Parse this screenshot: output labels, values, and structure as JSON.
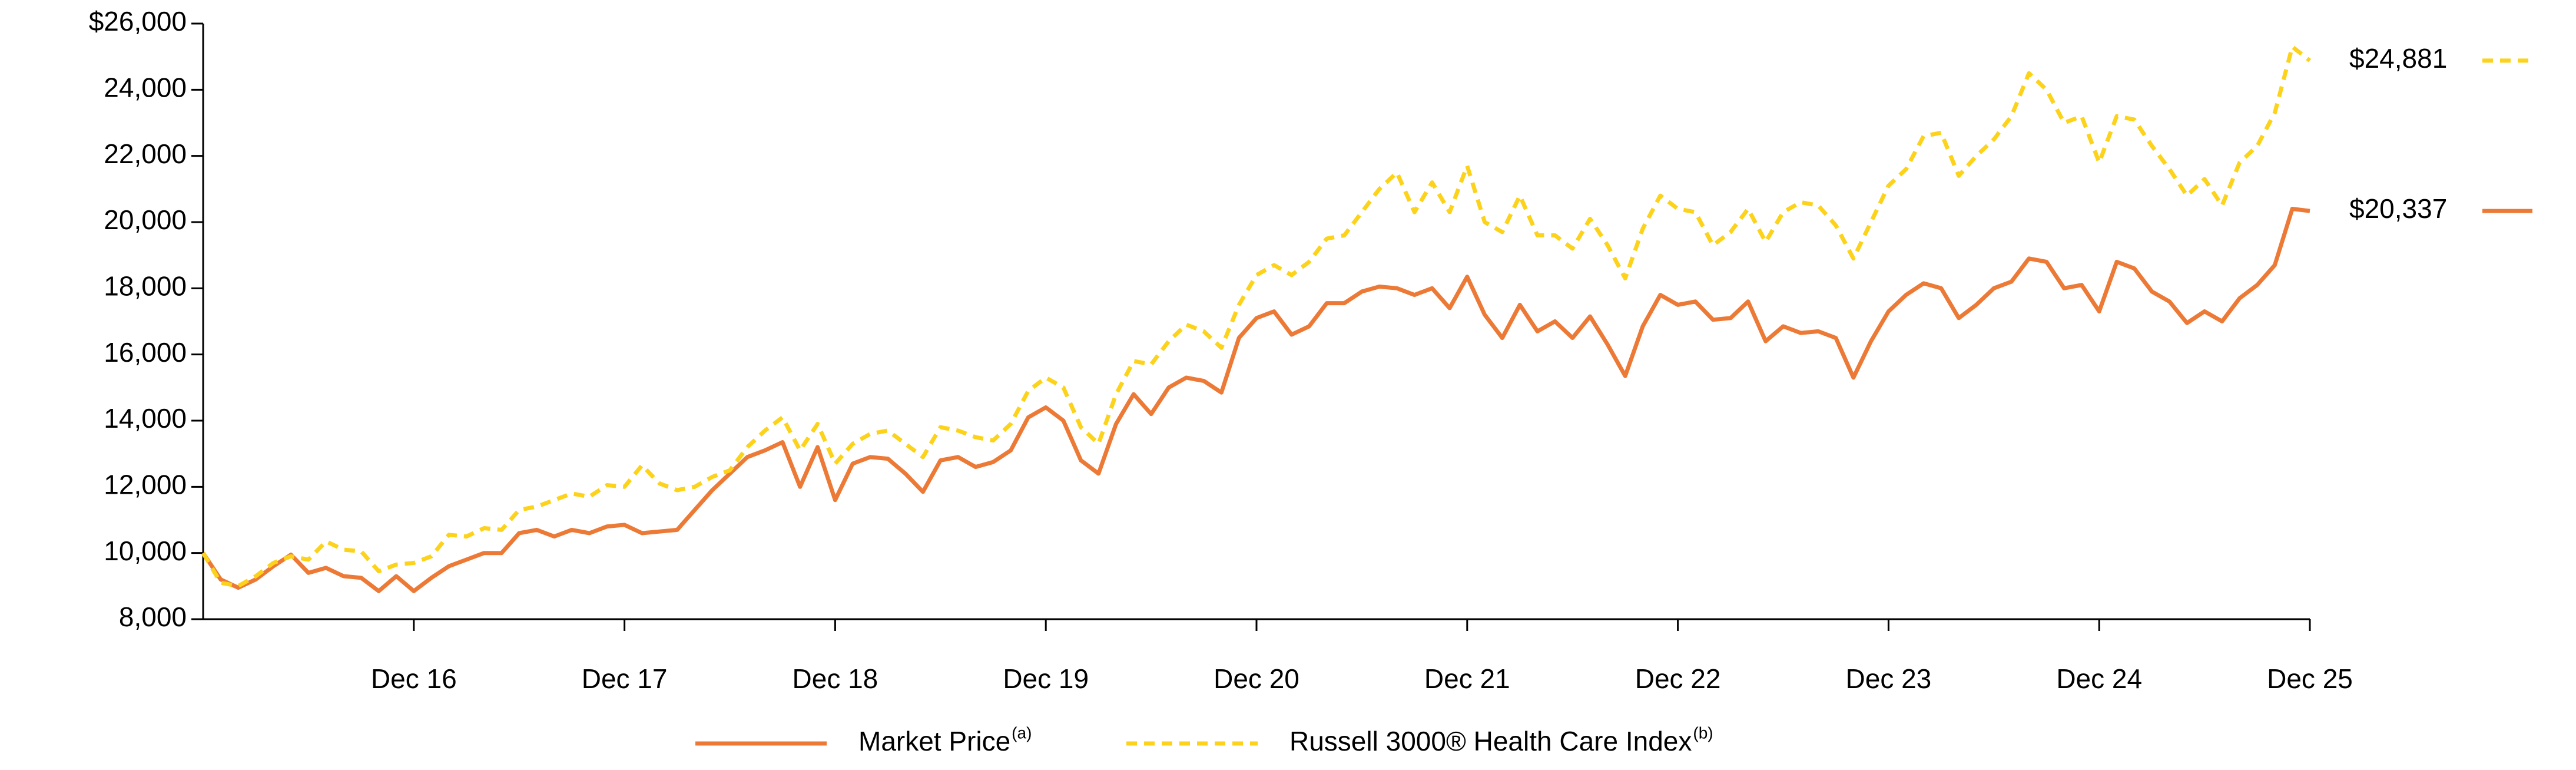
{
  "chart_data": {
    "type": "line",
    "categories": [
      null,
      null,
      null,
      null,
      null,
      null,
      null,
      null,
      null,
      null,
      null,
      null,
      "Dec 16",
      null,
      null,
      null,
      null,
      null,
      null,
      null,
      null,
      null,
      null,
      null,
      "Dec 17",
      null,
      null,
      null,
      null,
      null,
      null,
      null,
      null,
      null,
      null,
      null,
      "Dec 18",
      null,
      null,
      null,
      null,
      null,
      null,
      null,
      null,
      null,
      null,
      null,
      "Dec 19",
      null,
      null,
      null,
      null,
      null,
      null,
      null,
      null,
      null,
      null,
      null,
      "Dec 20",
      null,
      null,
      null,
      null,
      null,
      null,
      null,
      null,
      null,
      null,
      null,
      "Dec 21",
      null,
      null,
      null,
      null,
      null,
      null,
      null,
      null,
      null,
      null,
      null,
      "Dec 22",
      null,
      null,
      null,
      null,
      null,
      null,
      null,
      null,
      null,
      null,
      null,
      "Dec 23",
      null,
      null,
      null,
      null,
      null,
      null,
      null,
      null,
      null,
      null,
      null,
      "Dec 24",
      null,
      null,
      null,
      null,
      null,
      null,
      null,
      null,
      null,
      null,
      null,
      "Dec 25"
    ],
    "series": [
      {
        "name": "Market Price",
        "name_superscript": "(a)",
        "color": "#ec7a36",
        "dash": false,
        "values": [
          10000,
          9200,
          8950,
          9200,
          9600,
          9950,
          9400,
          9550,
          9300,
          9250,
          8850,
          9300,
          8850,
          9250,
          9600,
          9800,
          10000,
          10000,
          10600,
          10700,
          10500,
          10700,
          10600,
          10800,
          10850,
          10600,
          10650,
          10700,
          11300,
          11900,
          12400,
          12900,
          13100,
          13350,
          12000,
          13200,
          11600,
          12700,
          12900,
          12850,
          12400,
          11850,
          12800,
          12900,
          12600,
          12750,
          13100,
          14100,
          14400,
          14000,
          12800,
          12400,
          13900,
          14800,
          14200,
          15000,
          15300,
          15200,
          14850,
          16500,
          17100,
          17300,
          16600,
          16850,
          17550,
          17550,
          17900,
          18050,
          18000,
          17800,
          18000,
          17400,
          18350,
          17200,
          16500,
          17500,
          16700,
          17000,
          16500,
          17150,
          16300,
          15350,
          16850,
          17800,
          17500,
          17600,
          17050,
          17100,
          17600,
          16400,
          16850,
          16650,
          16700,
          16500,
          15300,
          16400,
          17300,
          17800,
          18150,
          18000,
          17100,
          17500,
          18000,
          18200,
          18900,
          18800,
          18000,
          18100,
          17300,
          18800,
          18600,
          17900,
          17600,
          16950,
          17300,
          17000,
          17700,
          18100,
          18700,
          20400,
          20337
        ],
        "value_labels": [
          null,
          null,
          null,
          null,
          null,
          null,
          null,
          null,
          null,
          null,
          null,
          null,
          null,
          null,
          null,
          null,
          null,
          null,
          null,
          null,
          null,
          null,
          null,
          null,
          null,
          null,
          null,
          null,
          null,
          null,
          null,
          null,
          null,
          null,
          null,
          null,
          null,
          null,
          null,
          null,
          null,
          null,
          null,
          null,
          null,
          null,
          null,
          null,
          null,
          null,
          null,
          null,
          null,
          null,
          null,
          null,
          null,
          null,
          null,
          null,
          null,
          null,
          null,
          null,
          null,
          null,
          null,
          null,
          null,
          null,
          null,
          null,
          null,
          null,
          null,
          null,
          null,
          null,
          null,
          null,
          null,
          null,
          null,
          null,
          null,
          null,
          null,
          null,
          null,
          null,
          null,
          null,
          null,
          null,
          null,
          null,
          null,
          null,
          null,
          null,
          null,
          null,
          null,
          null,
          null,
          null,
          null,
          null,
          null,
          null,
          null,
          null,
          null,
          null,
          null,
          null,
          null,
          null,
          null,
          null,
          "$20,337"
        ]
      },
      {
        "name": "Russell 3000® Health Care Index",
        "name_superscript": "(b)",
        "color": "#fcd31a",
        "dash": true,
        "values": [
          10000,
          9100,
          9000,
          9300,
          9700,
          9900,
          9800,
          10350,
          10100,
          10050,
          9450,
          9650,
          9700,
          9900,
          10550,
          10500,
          10750,
          10700,
          11300,
          11400,
          11600,
          11800,
          11700,
          12050,
          12000,
          12650,
          12100,
          11900,
          12000,
          12300,
          12500,
          13200,
          13700,
          14100,
          13100,
          13900,
          12700,
          13300,
          13600,
          13700,
          13300,
          12900,
          13800,
          13700,
          13500,
          13400,
          13900,
          14900,
          15300,
          15000,
          13800,
          13300,
          14800,
          15800,
          15700,
          16400,
          16900,
          16700,
          16200,
          17500,
          18400,
          18700,
          18400,
          18800,
          19500,
          19600,
          20300,
          21000,
          21500,
          20300,
          21200,
          20300,
          21700,
          20000,
          19700,
          20800,
          19600,
          19600,
          19200,
          20100,
          19300,
          18300,
          19800,
          20800,
          20400,
          20300,
          19300,
          19700,
          20400,
          19400,
          20300,
          20600,
          20500,
          19900,
          18900,
          20000,
          21100,
          21600,
          22600,
          22700,
          21400,
          22000,
          22500,
          23200,
          24500,
          24000,
          23000,
          23200,
          21800,
          23200,
          23100,
          22300,
          21600,
          20800,
          21300,
          20500,
          21800,
          22300,
          23300,
          25300,
          24881
        ],
        "value_labels": [
          null,
          null,
          null,
          null,
          null,
          null,
          null,
          null,
          null,
          null,
          null,
          null,
          null,
          null,
          null,
          null,
          null,
          null,
          null,
          null,
          null,
          null,
          null,
          null,
          null,
          null,
          null,
          null,
          null,
          null,
          null,
          null,
          null,
          null,
          null,
          null,
          null,
          null,
          null,
          null,
          null,
          null,
          null,
          null,
          null,
          null,
          null,
          null,
          null,
          null,
          null,
          null,
          null,
          null,
          null,
          null,
          null,
          null,
          null,
          null,
          null,
          null,
          null,
          null,
          null,
          null,
          null,
          null,
          null,
          null,
          null,
          null,
          null,
          null,
          null,
          null,
          null,
          null,
          null,
          null,
          null,
          null,
          null,
          null,
          null,
          null,
          null,
          null,
          null,
          null,
          null,
          null,
          null,
          null,
          null,
          null,
          null,
          null,
          null,
          null,
          null,
          null,
          null,
          null,
          null,
          null,
          null,
          null,
          null,
          null,
          null,
          null,
          null,
          null,
          null,
          null,
          null,
          null,
          null,
          null,
          "$24,881"
        ]
      }
    ],
    "ylim": [
      8000,
      26000
    ],
    "yticks": [
      {
        "value": 8000,
        "label": "8,000"
      },
      {
        "value": 10000,
        "label": "10,000"
      },
      {
        "value": 12000,
        "label": "12,000"
      },
      {
        "value": 14000,
        "label": "14,000"
      },
      {
        "value": 16000,
        "label": "16,000"
      },
      {
        "value": 18000,
        "label": "18,000"
      },
      {
        "value": 20000,
        "label": "20,000"
      },
      {
        "value": 22000,
        "label": "22,000"
      },
      {
        "value": 24000,
        "label": "24,000"
      },
      {
        "value": 26000,
        "label": "$26,000"
      }
    ],
    "grid": false,
    "legend": "bottom"
  }
}
